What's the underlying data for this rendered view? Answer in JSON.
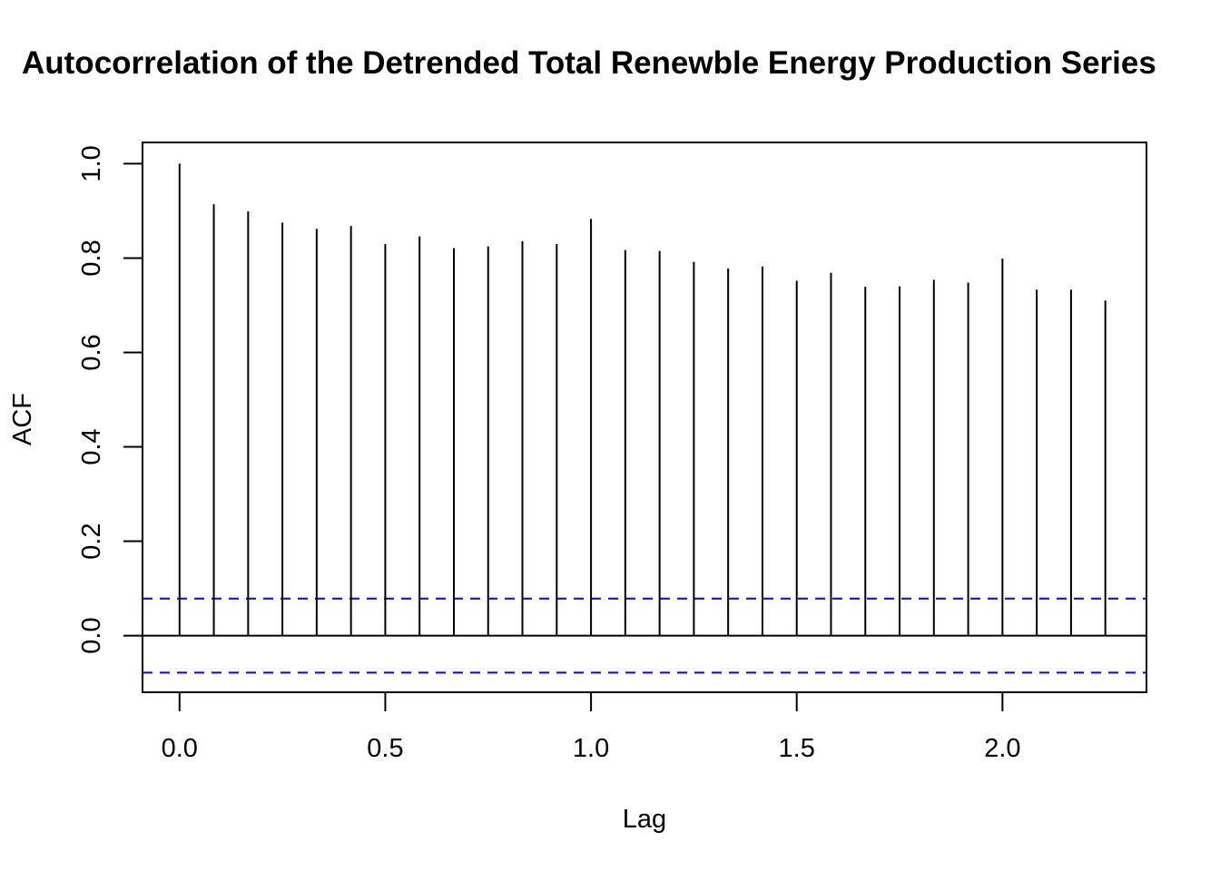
{
  "chart_data": {
    "type": "bar",
    "title": "Autocorrelation of the Detrended Total Renewble Energy Production Series",
    "xlabel": "Lag",
    "ylabel": "ACF",
    "x": [
      0,
      0.0833,
      0.1667,
      0.25,
      0.3333,
      0.4167,
      0.5,
      0.5833,
      0.6667,
      0.75,
      0.8333,
      0.9167,
      1.0,
      1.0833,
      1.1667,
      1.25,
      1.3333,
      1.4167,
      1.5,
      1.5833,
      1.6667,
      1.75,
      1.8333,
      1.9167,
      2.0,
      2.0833,
      2.1667,
      2.25
    ],
    "values": [
      1.0,
      0.914,
      0.899,
      0.875,
      0.862,
      0.868,
      0.83,
      0.846,
      0.821,
      0.825,
      0.836,
      0.83,
      0.883,
      0.817,
      0.815,
      0.792,
      0.778,
      0.782,
      0.752,
      0.769,
      0.739,
      0.74,
      0.754,
      0.748,
      0.799,
      0.733,
      0.733,
      0.71
    ],
    "confidence_bound": 0.0785,
    "xlim": [
      -0.09,
      2.35
    ],
    "ylim": [
      -0.12,
      1.045
    ],
    "xticks": [
      "0.0",
      "0.5",
      "1.0",
      "1.5",
      "2.0"
    ],
    "xtick_values": [
      0,
      0.5,
      1.0,
      1.5,
      2.0
    ],
    "yticks": [
      "0.0",
      "0.2",
      "0.4",
      "0.6",
      "0.8",
      "1.0"
    ],
    "ytick_values": [
      0,
      0.2,
      0.4,
      0.6,
      0.8,
      1.0
    ],
    "grid": false,
    "colors": {
      "bars": "#000000",
      "confidence_lines": "#0000ff",
      "axes": "#000000"
    }
  }
}
